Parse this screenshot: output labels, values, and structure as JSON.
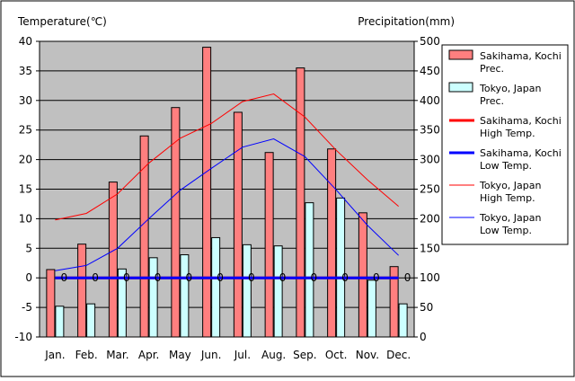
{
  "chart_data": {
    "type": "bar",
    "left_axis_title": "Temperature(℃)",
    "right_axis_title": "Precipitation(mm)",
    "categories": [
      "Jan.",
      "Feb.",
      "Mar.",
      "Apr.",
      "May",
      "Jun.",
      "Jul.",
      "Aug.",
      "Sep.",
      "Oct.",
      "Nov.",
      "Dec."
    ],
    "temperature_axis": {
      "min": -10,
      "max": 40,
      "ticks": [
        -10,
        -5,
        0,
        5,
        10,
        15,
        20,
        25,
        30,
        35,
        40
      ]
    },
    "precipitation_axis": {
      "min": 0,
      "max": 500,
      "ticks": [
        0,
        50,
        100,
        150,
        200,
        250,
        300,
        350,
        400,
        450,
        500
      ]
    },
    "plot_background": "#c0c0c0",
    "grid": "horizontal",
    "legend_position": "right",
    "series": [
      {
        "name": "Sakihama, Kochi Prec.",
        "kind": "bar",
        "axis": "precipitation",
        "color": "#ff7f7f",
        "values": [
          114,
          157,
          262,
          340,
          388,
          490,
          380,
          312,
          455,
          318,
          210,
          119
        ]
      },
      {
        "name": "Tokyo, Japan Prec.",
        "kind": "bar",
        "axis": "precipitation",
        "color": "#ccffff",
        "values": [
          52,
          56,
          115,
          134,
          139,
          168,
          156,
          154,
          227,
          235,
          96,
          56
        ]
      },
      {
        "name": "Sakihama, Kochi High Temp.",
        "kind": "line",
        "axis": "temperature",
        "color": "#ff0000",
        "width": 3,
        "values": [
          0,
          0,
          0,
          0,
          0,
          0,
          0,
          0,
          0,
          0,
          0,
          0
        ]
      },
      {
        "name": "Sakihama, Kochi Low Temp.",
        "kind": "line",
        "axis": "temperature",
        "color": "#0000ff",
        "width": 3,
        "values": [
          0,
          0,
          0,
          0,
          0,
          0,
          0,
          0,
          0,
          0,
          0,
          0
        ]
      },
      {
        "name": "Tokyo, Japan High Temp.",
        "kind": "line",
        "axis": "temperature",
        "color": "#ff0000",
        "width": 1,
        "values": [
          9.8,
          10.9,
          14.2,
          19.4,
          23.6,
          26.1,
          29.8,
          31.1,
          27.2,
          21.6,
          16.6,
          12.1
        ]
      },
      {
        "name": "Tokyo, Japan Low Temp.",
        "kind": "line",
        "axis": "temperature",
        "color": "#0000ff",
        "width": 1,
        "values": [
          1.2,
          2.1,
          5.0,
          10.0,
          14.8,
          18.5,
          22.1,
          23.5,
          20.5,
          14.9,
          8.9,
          3.8
        ]
      }
    ],
    "data_labels": [
      "0",
      "0",
      "0",
      "0",
      "0",
      "0",
      "0",
      "0",
      "0",
      "0",
      "0",
      "0"
    ],
    "legend": [
      {
        "series": 0,
        "lines": [
          "Sakihama, Kochi",
          "Prec."
        ],
        "swatch": "box"
      },
      {
        "series": 1,
        "lines": [
          "Tokyo, Japan",
          "Prec."
        ],
        "swatch": "box"
      },
      {
        "series": 2,
        "lines": [
          "Sakihama, Kochi",
          "High Temp."
        ],
        "swatch": "line"
      },
      {
        "series": 3,
        "lines": [
          "Sakihama, Kochi",
          "Low Temp."
        ],
        "swatch": "line"
      },
      {
        "series": 4,
        "lines": [
          "Tokyo, Japan",
          "High Temp."
        ],
        "swatch": "line"
      },
      {
        "series": 5,
        "lines": [
          "Tokyo, Japan",
          "Low Temp."
        ],
        "swatch": "line"
      }
    ]
  }
}
